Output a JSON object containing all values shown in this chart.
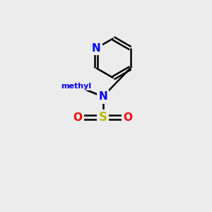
{
  "bg_color": "#ececec",
  "bond_color": "#000000",
  "bond_width": 1.8,
  "atom_colors": {
    "N": "#0000ff",
    "O": "#ff0000",
    "S": "#bbbb00",
    "Cl": "#00bb00",
    "C": "#000000"
  },
  "font_size_atom": 11,
  "dbo": 0.13
}
